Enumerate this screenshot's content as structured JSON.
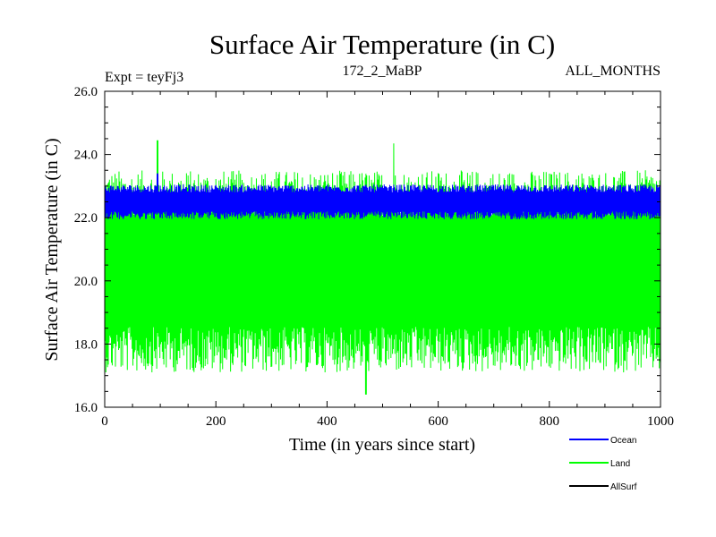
{
  "chart_data": {
    "type": "line",
    "title": "Surface Air Temperature (in C)",
    "subtitle_left": "Expt = teyFj3",
    "subtitle_center": "172_2_MaBP",
    "subtitle_right": "ALL_MONTHS",
    "xlabel": "Time (in years since start)",
    "ylabel": "Surface Air Temperature (in C)",
    "xlim": [
      0,
      1000
    ],
    "ylim": [
      16.0,
      26.0
    ],
    "x_ticks": [
      0,
      200,
      400,
      600,
      800,
      1000
    ],
    "x_tick_labels": [
      "0",
      "200",
      "400",
      "600",
      "800",
      "1000"
    ],
    "y_ticks": [
      16.0,
      18.0,
      20.0,
      22.0,
      24.0,
      26.0
    ],
    "y_tick_labels": [
      "16.0",
      "18.0",
      "20.0",
      "22.0",
      "24.0",
      "26.0"
    ],
    "legend_position": "bottom-right",
    "series": [
      {
        "name": "Land",
        "color": "#00ff00",
        "description_values": {
          "mean": 20.3,
          "typical_min": 17.2,
          "typical_max": 23.6,
          "peak_max": 24.45,
          "peak_min": 16.4
        },
        "peaks": [
          {
            "x": 95,
            "y": 24.45
          },
          {
            "x": 520,
            "y": 24.35
          },
          {
            "x": 470,
            "y": 16.4
          }
        ]
      },
      {
        "name": "Ocean",
        "color": "#0000ff",
        "description_values": {
          "mean": 22.5,
          "typical_min": 22.0,
          "typical_max": 23.1,
          "peak_max": 23.4,
          "peak_min": 21.9
        },
        "peaks": [
          {
            "x": 95,
            "y": 23.4
          },
          {
            "x": 100,
            "y": 22.0
          }
        ]
      },
      {
        "name": "AllSurf",
        "color": "#000000",
        "description_values": {
          "mean": 22.0
        }
      }
    ]
  }
}
